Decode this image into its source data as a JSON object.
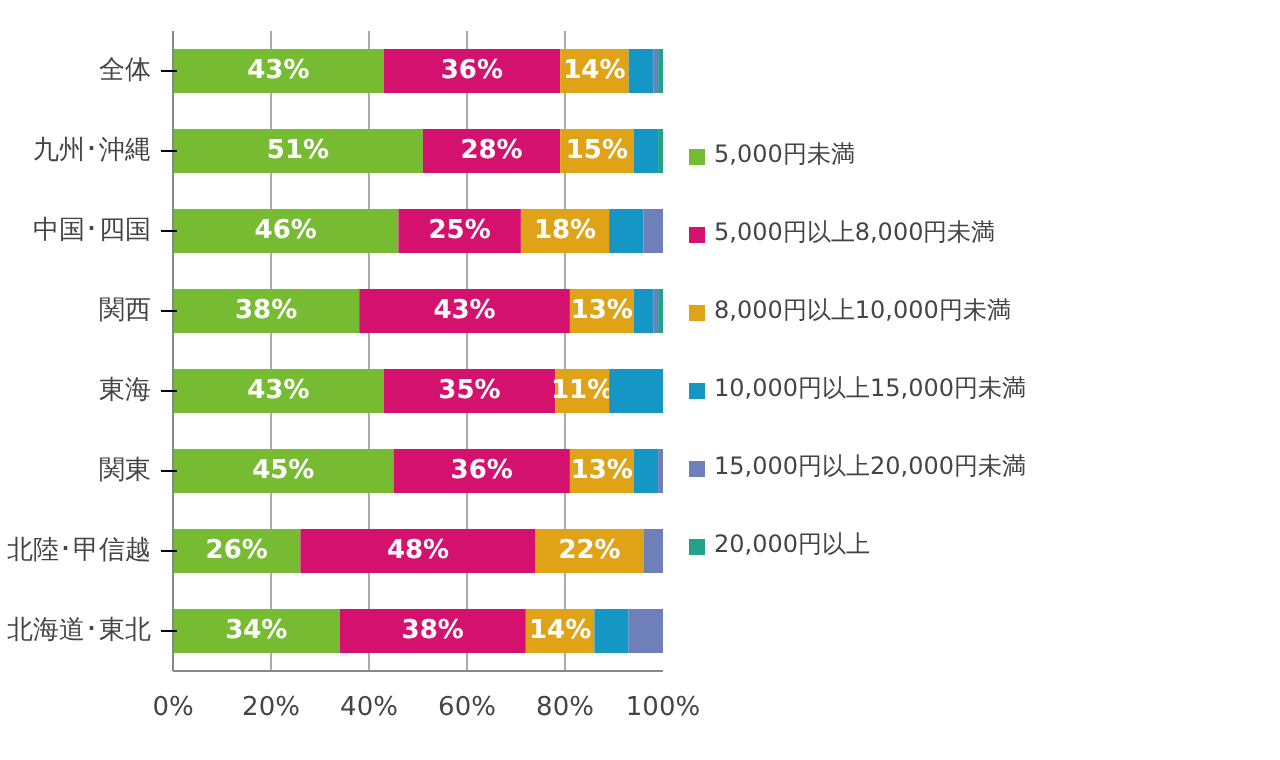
{
  "chart_data": {
    "type": "bar",
    "orientation": "horizontal",
    "stacked": true,
    "categories": [
      "全体",
      "九州･沖縄",
      "中国･四国",
      "関西",
      "東海",
      "関東",
      "北陸･甲信越",
      "北海道･東北"
    ],
    "xlim": [
      0,
      100
    ],
    "xticks": [
      {
        "value": 0,
        "label": "0%"
      },
      {
        "value": 20,
        "label": "20%"
      },
      {
        "value": 40,
        "label": "40%"
      },
      {
        "value": 60,
        "label": "60%"
      },
      {
        "value": 80,
        "label": "80%"
      },
      {
        "value": 100,
        "label": "100%"
      }
    ],
    "grid": "x",
    "legend": "right",
    "series": [
      {
        "name": "5,000円未満",
        "color": "#77bb33",
        "values": [
          43,
          51,
          46,
          38,
          43,
          45,
          26,
          34
        ],
        "value_labels": [
          "43%",
          "51%",
          "46%",
          "38%",
          "43%",
          "45%",
          "26%",
          "34%"
        ]
      },
      {
        "name": "5,000円以上8,000円未満",
        "color": "#d4116e",
        "values": [
          36,
          28,
          25,
          43,
          35,
          36,
          48,
          38
        ],
        "value_labels": [
          "36%",
          "28%",
          "25%",
          "43%",
          "35%",
          "36%",
          "48%",
          "38%"
        ]
      },
      {
        "name": "8,000円以上10,000円未満",
        "color": "#e0a318",
        "values": [
          14,
          15,
          18,
          13,
          11,
          13,
          22,
          14
        ],
        "value_labels": [
          "14%",
          "15%",
          "18%",
          "13%",
          "11%",
          "13%",
          "22%",
          "14%"
        ]
      },
      {
        "name": "10,000円以上15,000円未満",
        "color": "#1696c4",
        "values": [
          5,
          5,
          7,
          4,
          11,
          5,
          0,
          7
        ],
        "value_labels": [
          null,
          null,
          null,
          null,
          null,
          null,
          null,
          null
        ]
      },
      {
        "name": "15,000円以上20,000円未満",
        "color": "#6e7fba",
        "values": [
          1,
          0,
          4,
          1,
          0,
          1,
          4,
          7
        ],
        "value_labels": [
          null,
          null,
          null,
          null,
          null,
          null,
          null,
          null
        ]
      },
      {
        "name": "20,000円以上",
        "color": "#22a28a",
        "values": [
          1,
          1,
          0,
          1,
          0,
          0,
          0,
          0
        ],
        "value_labels": [
          null,
          null,
          null,
          null,
          null,
          null,
          null,
          null
        ]
      }
    ]
  }
}
